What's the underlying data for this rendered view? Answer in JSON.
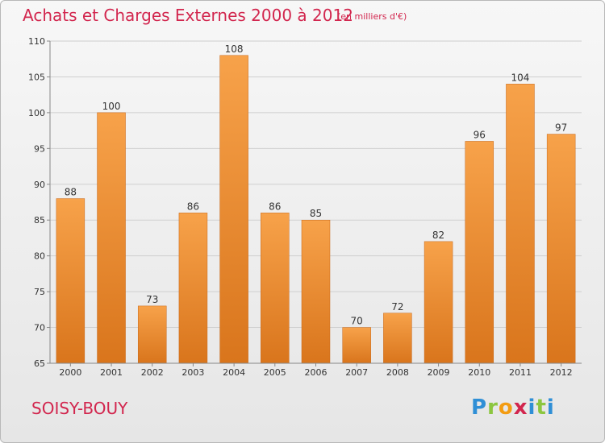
{
  "header": {
    "title": "Achats et Charges Externes 2000 à 2012",
    "subtitle": "(en milliers d'€)"
  },
  "footer": {
    "commune": "SOISY-BOUY",
    "logo_letters": [
      "P",
      "r",
      "o",
      "x",
      "i",
      "t",
      "i"
    ]
  },
  "colors": {
    "title": "#d2264e",
    "bar_top": "#f7a24a",
    "bar_bottom": "#d9751c"
  },
  "chart_data": {
    "type": "bar",
    "title": "Achats et Charges Externes 2000 à 2012",
    "subtitle": "(en milliers d'€)",
    "categories": [
      "2000",
      "2001",
      "2002",
      "2003",
      "2004",
      "2005",
      "2006",
      "2007",
      "2008",
      "2009",
      "2010",
      "2011",
      "2012"
    ],
    "values": [
      88,
      100,
      73,
      86,
      108,
      86,
      85,
      70,
      72,
      82,
      96,
      104,
      97
    ],
    "ylim": [
      65,
      110
    ],
    "yticks": [
      65,
      70,
      75,
      80,
      85,
      90,
      95,
      100,
      105,
      110
    ],
    "grid": true,
    "data_labels": true
  }
}
